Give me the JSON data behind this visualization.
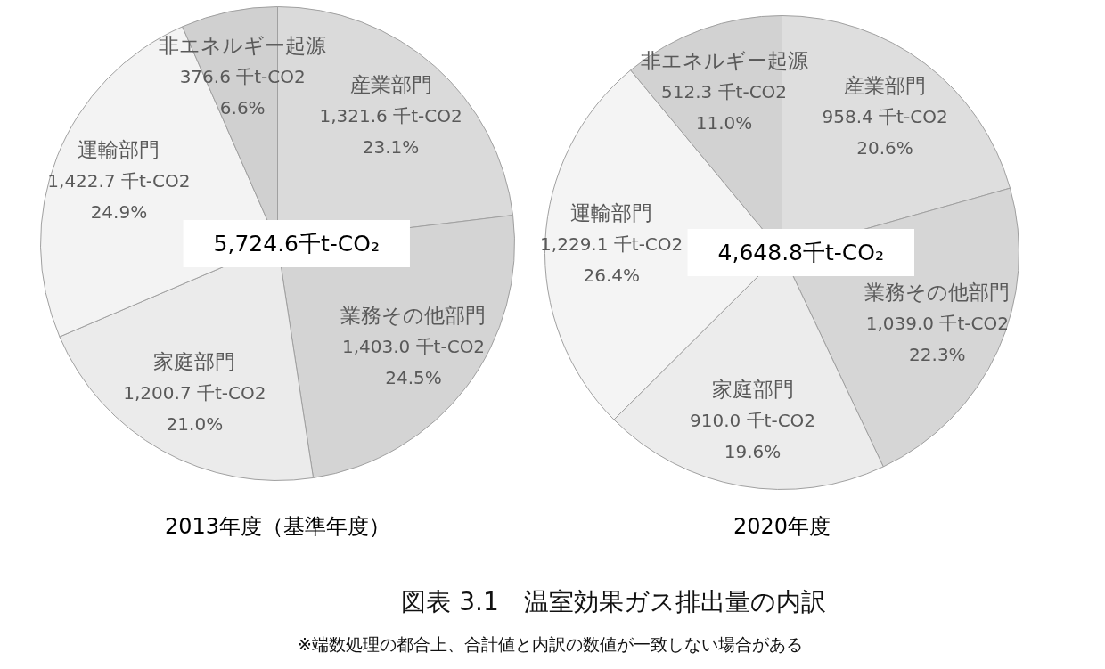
{
  "chart_data": [
    {
      "type": "pie",
      "title": "2013年度（基準年度）",
      "categories": [
        "産業部門",
        "業務その他部門",
        "家庭部門",
        "運輸部門",
        "非エネルギー起源"
      ],
      "values": [
        1321.6,
        1403.0,
        1200.7,
        1422.7,
        376.6
      ],
      "value_labels": [
        "1,321.6 千t-CO2\n23.1%",
        "1,403.0 千t-CO2\n24.5%",
        "1,200.7 千t-CO2\n21.0%",
        "1,422.7 千t-CO2\n24.9%",
        "376.6 千t-CO2\n6.6%"
      ],
      "colors": [
        "#dadada",
        "#d4d4d4",
        "#ebebeb",
        "#f3f3f3",
        "#d0d0d0"
      ],
      "annotations": [
        "5,724.6千t-CO₂"
      ]
    },
    {
      "type": "pie",
      "title": "2020年度",
      "categories": [
        "産業部門",
        "業務その他部門",
        "家庭部門",
        "運輸部門",
        "非エネルギー起源"
      ],
      "values": [
        958.4,
        1039.0,
        910.0,
        1229.1,
        512.3
      ],
      "value_labels": [
        "958.4 千t-CO2\n20.6%",
        "1,039.0 千t-CO2\n22.3%",
        "910.0 千t-CO2\n19.6%",
        "1,229.1 千t-CO2\n26.4%",
        "512.3 千t-CO2\n11.0%"
      ],
      "colors": [
        "#dedede",
        "#d6d6d6",
        "#ececec",
        "#f4f4f4",
        "#d2d2d2"
      ],
      "annotations": [
        "4,648.8千t-CO₂"
      ]
    },
    {
      "type": "other",
      "title": "図表 3.1　温室効果ガス排出量の内訳",
      "annotations": [
        "※端数処理の都合上、合計値と内訳の数値が一致しない場合がある"
      ]
    }
  ]
}
